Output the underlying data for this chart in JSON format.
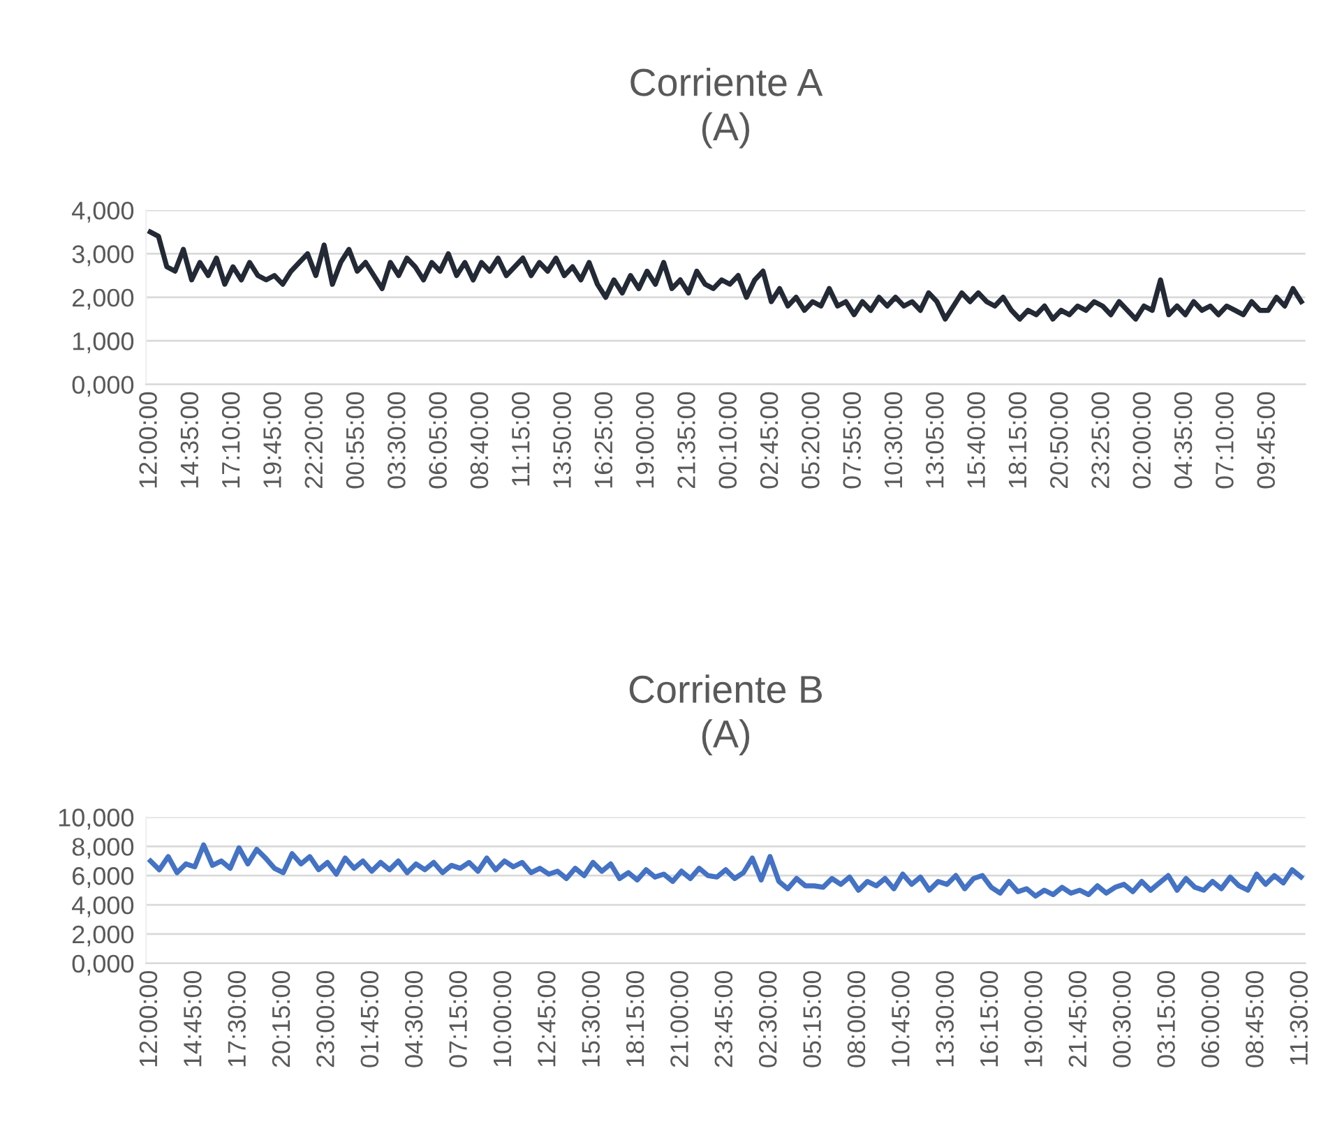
{
  "chart_data": [
    {
      "type": "line",
      "title": "Corriente A\n(A)",
      "grid": "y",
      "categories": [
        "12:00:00",
        null,
        null,
        null,
        null,
        "14:35:00",
        null,
        null,
        null,
        null,
        "17:10:00",
        null,
        null,
        null,
        null,
        "19:45:00",
        null,
        null,
        null,
        null,
        "22:20:00",
        null,
        null,
        null,
        null,
        "00:55:00",
        null,
        null,
        null,
        null,
        "03:30:00",
        null,
        null,
        null,
        null,
        "06:05:00",
        null,
        null,
        null,
        null,
        "08:40:00",
        null,
        null,
        null,
        null,
        "11:15:00",
        null,
        null,
        null,
        null,
        "13:50:00",
        null,
        null,
        null,
        null,
        "16:25:00",
        null,
        null,
        null,
        null,
        "19:00:00",
        null,
        null,
        null,
        null,
        "21:35:00",
        null,
        null,
        null,
        null,
        "00:10:00",
        null,
        null,
        null,
        null,
        "02:45:00",
        null,
        null,
        null,
        null,
        "05:20:00",
        null,
        null,
        null,
        null,
        "07:55:00",
        null,
        null,
        null,
        null,
        "10:30:00",
        null,
        null,
        null,
        null,
        "13:05:00",
        null,
        null,
        null,
        null,
        "15:40:00",
        null,
        null,
        null,
        null,
        "18:15:00",
        null,
        null,
        null,
        null,
        "20:50:00",
        null,
        null,
        null,
        null,
        "23:25:00",
        null,
        null,
        null,
        null,
        "02:00:00",
        null,
        null,
        null,
        null,
        "04:35:00",
        null,
        null,
        null,
        null,
        "07:10:00",
        null,
        null,
        null,
        null,
        "09:45:00",
        null,
        null,
        null,
        null
      ],
      "series": [
        {
          "color": "#232a35",
          "values": [
            3.5,
            3.4,
            2.7,
            2.6,
            3.1,
            2.4,
            2.8,
            2.5,
            2.9,
            2.3,
            2.7,
            2.4,
            2.8,
            2.5,
            2.4,
            2.5,
            2.3,
            2.6,
            2.8,
            3.0,
            2.5,
            3.2,
            2.3,
            2.8,
            3.1,
            2.6,
            2.8,
            2.5,
            2.2,
            2.8,
            2.5,
            2.9,
            2.7,
            2.4,
            2.8,
            2.6,
            3.0,
            2.5,
            2.8,
            2.4,
            2.8,
            2.6,
            2.9,
            2.5,
            2.7,
            2.9,
            2.5,
            2.8,
            2.6,
            2.9,
            2.5,
            2.7,
            2.4,
            2.8,
            2.3,
            2.0,
            2.4,
            2.1,
            2.5,
            2.2,
            2.6,
            2.3,
            2.8,
            2.2,
            2.4,
            2.1,
            2.6,
            2.3,
            2.2,
            2.4,
            2.3,
            2.5,
            2.0,
            2.4,
            2.6,
            1.9,
            2.2,
            1.8,
            2.0,
            1.7,
            1.9,
            1.8,
            2.2,
            1.8,
            1.9,
            1.6,
            1.9,
            1.7,
            2.0,
            1.8,
            2.0,
            1.8,
            1.9,
            1.7,
            2.1,
            1.9,
            1.5,
            1.8,
            2.1,
            1.9,
            2.1,
            1.9,
            1.8,
            2.0,
            1.7,
            1.5,
            1.7,
            1.6,
            1.8,
            1.5,
            1.7,
            1.6,
            1.8,
            1.7,
            1.9,
            1.8,
            1.6,
            1.9,
            1.7,
            1.5,
            1.8,
            1.7,
            2.4,
            1.6,
            1.8,
            1.6,
            1.9,
            1.7,
            1.8,
            1.6,
            1.8,
            1.7,
            1.6,
            1.9,
            1.7,
            1.7,
            2.0,
            1.8,
            2.2,
            1.9
          ]
        }
      ],
      "ylim": [
        0,
        4
      ],
      "yticks": [
        {
          "value": 0,
          "label": "0,000"
        },
        {
          "value": 1,
          "label": "1,000"
        },
        {
          "value": 2,
          "label": "2,000"
        },
        {
          "value": 3,
          "label": "3,000"
        },
        {
          "value": 4,
          "label": "4,000"
        }
      ]
    },
    {
      "type": "line",
      "title": "Corriente B\n(A)",
      "grid": "y",
      "categories": [
        "12:00:00",
        null,
        null,
        null,
        null,
        "14:45:00",
        null,
        null,
        null,
        null,
        "17:30:00",
        null,
        null,
        null,
        null,
        "20:15:00",
        null,
        null,
        null,
        null,
        "23:00:00",
        null,
        null,
        null,
        null,
        "01:45:00",
        null,
        null,
        null,
        null,
        "04:30:00",
        null,
        null,
        null,
        null,
        "07:15:00",
        null,
        null,
        null,
        null,
        "10:00:00",
        null,
        null,
        null,
        null,
        "12:45:00",
        null,
        null,
        null,
        null,
        "15:30:00",
        null,
        null,
        null,
        null,
        "18:15:00",
        null,
        null,
        null,
        null,
        "21:00:00",
        null,
        null,
        null,
        null,
        "23:45:00",
        null,
        null,
        null,
        null,
        "02:30:00",
        null,
        null,
        null,
        null,
        "05:15:00",
        null,
        null,
        null,
        null,
        "08:00:00",
        null,
        null,
        null,
        null,
        "10:45:00",
        null,
        null,
        null,
        null,
        "13:30:00",
        null,
        null,
        null,
        null,
        "16:15:00",
        null,
        null,
        null,
        null,
        "19:00:00",
        null,
        null,
        null,
        null,
        "21:45:00",
        null,
        null,
        null,
        null,
        "00:30:00",
        null,
        null,
        null,
        null,
        "03:15:00",
        null,
        null,
        null,
        null,
        "06:00:00",
        null,
        null,
        null,
        null,
        "08:45:00",
        null,
        null,
        null,
        null,
        "11:30:00"
      ],
      "series": [
        {
          "color": "#4472c4",
          "values": [
            7.0,
            6.4,
            7.3,
            6.2,
            6.8,
            6.6,
            8.1,
            6.7,
            7.0,
            6.5,
            7.9,
            6.8,
            7.8,
            7.2,
            6.5,
            6.2,
            7.5,
            6.8,
            7.3,
            6.4,
            6.9,
            6.1,
            7.2,
            6.5,
            7.0,
            6.3,
            6.9,
            6.4,
            7.0,
            6.2,
            6.8,
            6.4,
            6.9,
            6.2,
            6.7,
            6.5,
            6.9,
            6.3,
            7.2,
            6.4,
            7.0,
            6.6,
            6.9,
            6.2,
            6.5,
            6.1,
            6.3,
            5.8,
            6.5,
            6.0,
            6.9,
            6.3,
            6.8,
            5.8,
            6.2,
            5.7,
            6.4,
            5.9,
            6.1,
            5.6,
            6.3,
            5.8,
            6.5,
            6.0,
            5.9,
            6.4,
            5.8,
            6.2,
            7.2,
            5.7,
            7.3,
            5.6,
            5.1,
            5.8,
            5.3,
            5.3,
            5.2,
            5.8,
            5.4,
            5.9,
            5.0,
            5.6,
            5.3,
            5.8,
            5.1,
            6.1,
            5.4,
            5.9,
            5.0,
            5.6,
            5.4,
            6.0,
            5.1,
            5.8,
            6.0,
            5.2,
            4.8,
            5.6,
            4.9,
            5.1,
            4.6,
            5.0,
            4.7,
            5.2,
            4.8,
            5.0,
            4.7,
            5.3,
            4.8,
            5.2,
            5.4,
            4.9,
            5.6,
            5.0,
            5.5,
            6.0,
            5.0,
            5.8,
            5.2,
            5.0,
            5.6,
            5.1,
            5.9,
            5.3,
            5.0,
            6.1,
            5.4,
            6.0,
            5.5,
            6.4,
            5.9
          ]
        }
      ],
      "ylim": [
        0,
        10
      ],
      "yticks": [
        {
          "value": 0,
          "label": "0,000"
        },
        {
          "value": 2,
          "label": "2,000"
        },
        {
          "value": 4,
          "label": "4,000"
        },
        {
          "value": 6,
          "label": "6,000"
        },
        {
          "value": 8,
          "label": "8,000"
        },
        {
          "value": 10,
          "label": "10,000"
        }
      ]
    }
  ]
}
